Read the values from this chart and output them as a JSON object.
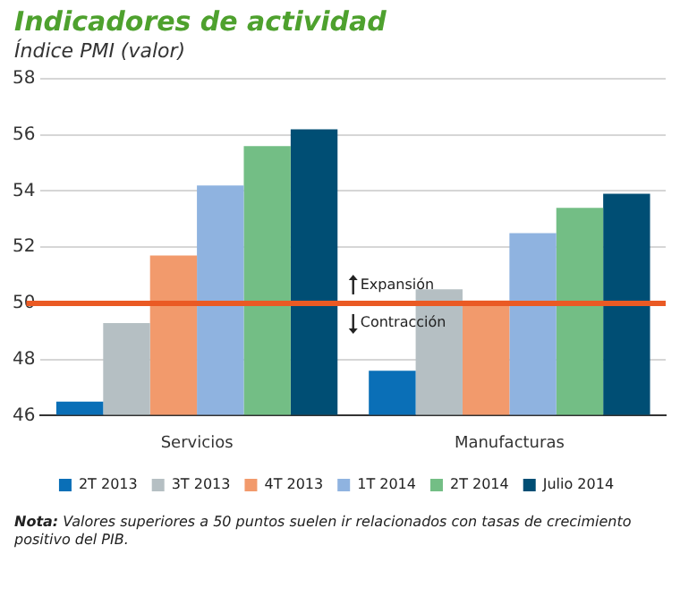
{
  "chart_data": {
    "type": "bar",
    "title": "Indicadores de actividad",
    "subtitle": "Índice PMI (valor)",
    "categories": [
      "Servicios",
      "Manufacturas"
    ],
    "series": [
      {
        "name": "2T 2013",
        "color": "#0a6fb7",
        "values": [
          46.5,
          47.6
        ]
      },
      {
        "name": "3T 2013",
        "color": "#b5bfc3",
        "values": [
          49.3,
          50.5
        ]
      },
      {
        "name": "4T 2013",
        "color": "#f29a6c",
        "values": [
          51.7,
          50.1
        ]
      },
      {
        "name": "1T 2014",
        "color": "#8fb3e0",
        "values": [
          54.2,
          52.5
        ]
      },
      {
        "name": "2T 2014",
        "color": "#73be85",
        "values": [
          55.6,
          53.4
        ]
      },
      {
        "name": "Julio 2014",
        "color": "#004e74",
        "values": [
          56.2,
          53.9
        ]
      }
    ],
    "ylim": [
      46,
      58
    ],
    "yticks": [
      46,
      48,
      50,
      52,
      54,
      56,
      58
    ],
    "grid": "y",
    "legend": "bottom",
    "ref_lines": [
      {
        "axis": "y",
        "value": 50,
        "color": "#ea5a24"
      }
    ],
    "annotations": [
      {
        "text": "Expansión",
        "y": 50
      },
      {
        "text": "Contracción",
        "y": 50
      },
      "Nota: Valores superiores a 50 puntos suelen ir relacionados con tasas de crecimiento positivo del PIB."
    ]
  }
}
